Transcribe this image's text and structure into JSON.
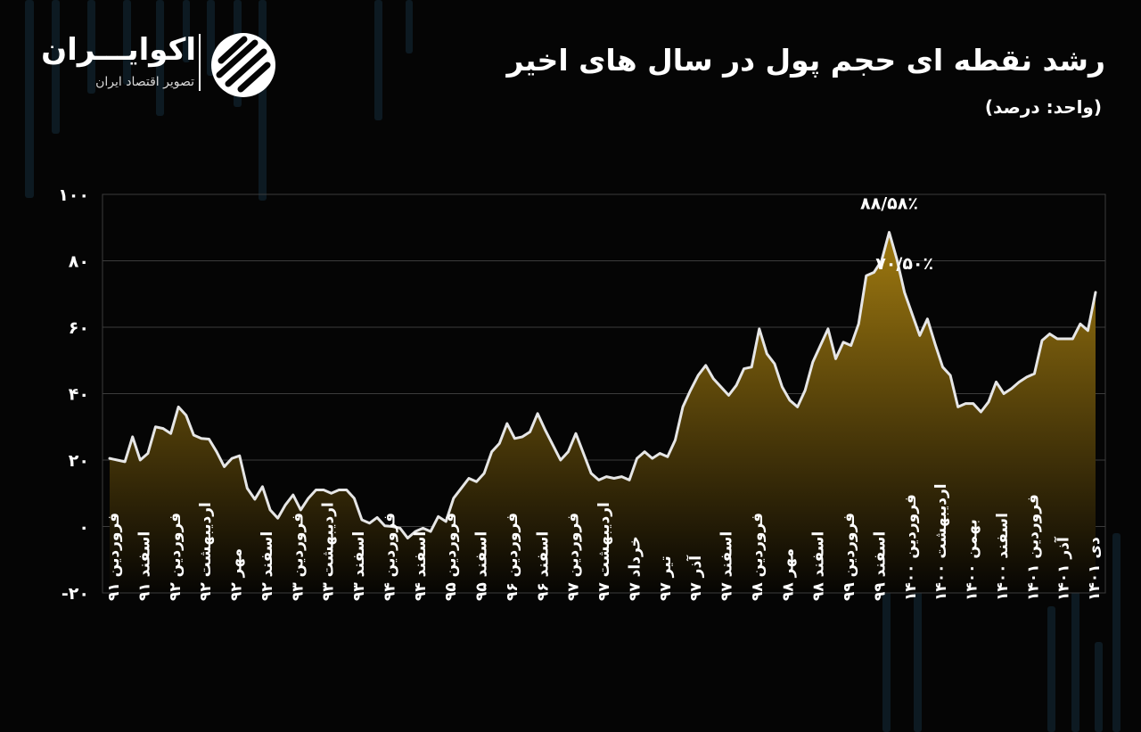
{
  "header": {
    "title": "رشد نقطه ای حجم پول در سال های اخیر",
    "subtitle": "(واحد: درصد)"
  },
  "brand": {
    "name": "اکوایـــران",
    "tagline": "تصویر اقتصاد ایران",
    "logo_icon": "ekoiran-logo-icon"
  },
  "colors": {
    "background": "#050505",
    "line": "#e6e6e6",
    "fill_top": "#a07a10",
    "fill_bottom": "#060503",
    "grid": "#3c3c3c",
    "text": "#ffffff"
  },
  "chart_data": {
    "type": "area",
    "title": "رشد نقطه ای حجم پول در سال های اخیر",
    "ylabel": "(واحد: درصد)",
    "xlabel": "",
    "ylim": [
      -20,
      100
    ],
    "yticks": [
      -20,
      0,
      20,
      40,
      60,
      80,
      100
    ],
    "ytick_labels": [
      "-۲۰",
      "۰",
      "۲۰",
      "۴۰",
      "۶۰",
      "۸۰",
      "۱۰۰"
    ],
    "grid": true,
    "legend": "none",
    "x_tick_labels": [
      "فروردین ۹۱",
      "اسفند ۹۱",
      "فروردین ۹۲",
      "اردیبهشت ۹۲",
      "مهر ۹۲",
      "اسفند ۹۲",
      "فروردین ۹۳",
      "اردیبهشت ۹۳",
      "اسفند ۹۳",
      "فروردین ۹۴",
      "اسفند ۹۴",
      "فروردین ۹۵",
      "اسفند ۹۵",
      "فروردین ۹۶",
      "اسفند ۹۶",
      "فروردین ۹۷",
      "اردیبهشت ۹۷",
      "خرداد ۹۷",
      "تیر ۹۷",
      "آذر ۹۷",
      "اسفند ۹۷",
      "فروردین ۹۸",
      "مهر ۹۸",
      "اسفند ۹۸",
      "فروردین ۹۹",
      "اسفند ۹۹",
      "فروردین ۱۴۰۰",
      "اردیبهشت ۱۴۰۰",
      "بهمن ۱۴۰۰",
      "اسفند ۱۴۰۰",
      "فروردین ۱۴۰۱",
      "آذر ۱۴۰۱",
      "دی ۱۴۰۱"
    ],
    "series": [
      {
        "values": [
          20.5,
          20.0,
          19.5,
          27.0,
          20.0,
          22.0,
          30.0,
          29.5,
          28.0,
          36.0,
          33.5,
          27.5,
          26.5,
          26.3,
          22.5,
          18.0,
          20.5,
          21.3,
          11.5,
          8.2,
          12.0,
          5.0,
          2.5,
          6.5,
          9.5,
          5.0,
          8.5,
          11.0,
          11.0,
          10.0,
          11.0,
          11.0,
          8.5,
          2.0,
          1.0,
          2.7,
          0.2,
          0.0,
          -0.5,
          -3.5,
          -1.5,
          -0.5,
          -1.5,
          3.0,
          1.5,
          8.5,
          11.5,
          14.5,
          13.5,
          16.0,
          22.5,
          25.0,
          31.0,
          26.5,
          27.0,
          28.5,
          34.0,
          29.0,
          24.5,
          20.0,
          22.5,
          28.0,
          22.0,
          16.0,
          14.0,
          15.0,
          14.5,
          15.0,
          14.0,
          20.5,
          22.5,
          20.5,
          22.0,
          21.0,
          26.0,
          36.0,
          41.0,
          45.5,
          48.5,
          44.5,
          42.0,
          39.5,
          42.5,
          47.5,
          48.0,
          59.5,
          52.0,
          49.0,
          42.0,
          38.0,
          36.0,
          41.0,
          49.5,
          54.5,
          59.5,
          50.5,
          55.5,
          54.5,
          61.0,
          75.5,
          76.5,
          80.0,
          88.58,
          80.5,
          70.5,
          64.0,
          57.5,
          62.5,
          55.0,
          48.0,
          45.5,
          36.0,
          37.0,
          37.0,
          34.5,
          37.5,
          43.5,
          40.0,
          41.5,
          43.5,
          45.0,
          46.0,
          56.0,
          58.0,
          56.5,
          56.5,
          56.5,
          61.0,
          59.0,
          70.5
        ]
      }
    ],
    "annotations": [
      {
        "label": "۸۸/۵۸٪",
        "value": 88.58
      },
      {
        "label": "۷۰/۵۰٪",
        "value": 70.5
      }
    ]
  }
}
